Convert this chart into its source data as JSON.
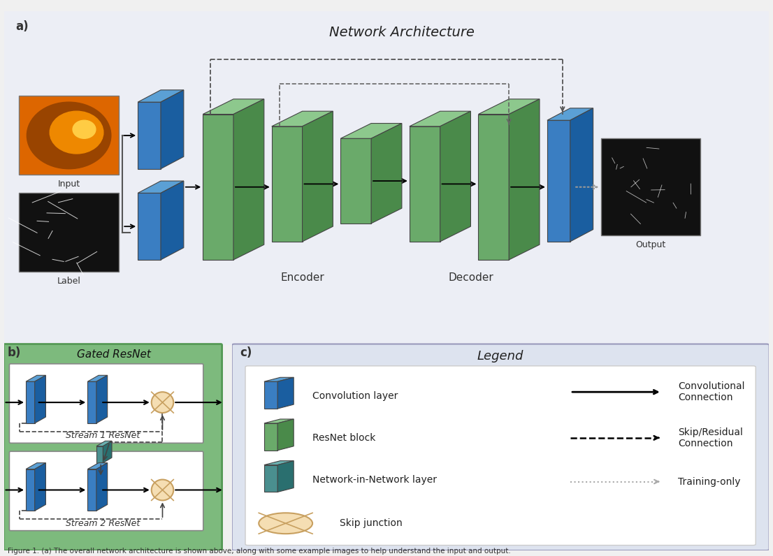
{
  "title_a": "Network Architecture",
  "title_b": "Gated ResNet",
  "title_c": "Legend",
  "bg_color_a": "#eceef5",
  "bg_color_b": "#7dba7d",
  "bg_color_c": "#dde3ef",
  "blue_face": "#3a7ec2",
  "blue_top": "#5ba0d5",
  "blue_side": "#1a5ea0",
  "green_face": "#6aaa6a",
  "green_top": "#8dc88d",
  "green_side": "#4a8a4a",
  "teal_face": "#4a8f8f",
  "teal_top": "#6ab0b0",
  "teal_side": "#2a6f6f",
  "skip_fill": "#f5deb3",
  "skip_edge": "#c8a060",
  "caption": "Figure 1. (a) The overall network architecture is shown above, along with some example images to help understand the input and output.",
  "encoder_label": "Encoder",
  "decoder_label": "Decoder",
  "input_label": "Input",
  "label_label": "Label",
  "output_label": "Output",
  "stream1_label": "Stream 1 ResNet",
  "stream2_label": "Stream 2 ResNet",
  "legend_conv": "Convolution layer",
  "legend_resnet": "ResNet block",
  "legend_nin": "Network-in-Network layer",
  "legend_skip": "Skip junction",
  "legend_conv_conn": "Convolutional\nConnection",
  "legend_skip_conn": "Skip/Residual\nConnection",
  "legend_training": "Training-only"
}
